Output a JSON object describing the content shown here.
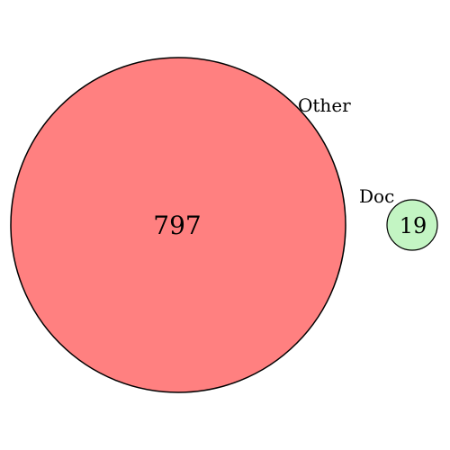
{
  "diagram": {
    "type": "venn",
    "sets": [
      {
        "key": "other",
        "label": "Other",
        "count": "797",
        "fill": "#ff8080",
        "stroke": "#000000"
      },
      {
        "key": "doc",
        "label": "Doc",
        "count": "19",
        "fill": "#c3f5c3",
        "stroke": "#000000"
      }
    ],
    "overlap": "none"
  }
}
